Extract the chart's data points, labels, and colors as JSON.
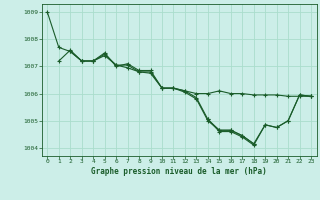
{
  "title": "Graphe pression niveau de la mer (hPa)",
  "bg_color": "#cceee8",
  "grid_color": "#aaddcc",
  "line_color": "#1a5c2a",
  "xlim": [
    -0.5,
    23.5
  ],
  "ylim": [
    1003.7,
    1009.3
  ],
  "yticks": [
    1004,
    1005,
    1006,
    1007,
    1008,
    1009
  ],
  "xticks": [
    0,
    1,
    2,
    3,
    4,
    5,
    6,
    7,
    8,
    9,
    10,
    11,
    12,
    13,
    14,
    15,
    16,
    17,
    18,
    19,
    20,
    21,
    22,
    23
  ],
  "series": [
    {
      "x": [
        0,
        1,
        2,
        3,
        4,
        5,
        6,
        7,
        8,
        9,
        10,
        11,
        12,
        13,
        14,
        15,
        16,
        17,
        18,
        19,
        20,
        21,
        22,
        23
      ],
      "y": [
        1009.0,
        1007.7,
        1007.55,
        1007.2,
        1007.2,
        1007.45,
        1007.05,
        1007.05,
        1006.8,
        1006.75,
        1006.2,
        1006.2,
        1006.1,
        1005.85,
        1005.05,
        1004.65,
        1004.65,
        1004.45,
        1004.15,
        1004.85,
        1004.75,
        1005.0,
        1005.95,
        1005.9
      ]
    },
    {
      "x": [
        1,
        2,
        3,
        4,
        5,
        6,
        7,
        8,
        9,
        10,
        11,
        12,
        13,
        14,
        15,
        16,
        17,
        18,
        19,
        20,
        21,
        22,
        23
      ],
      "y": [
        1007.2,
        1007.6,
        1007.2,
        1007.2,
        1007.5,
        1007.0,
        1007.1,
        1006.85,
        1006.85,
        1006.2,
        1006.2,
        1006.1,
        1006.0,
        1006.0,
        1006.1,
        1006.0,
        1006.0,
        1005.95,
        1005.95,
        1005.95,
        1005.9,
        1005.9,
        1005.9
      ]
    },
    {
      "x": [
        2,
        3,
        4,
        5,
        6,
        7,
        8,
        9,
        10,
        11,
        12,
        13,
        14,
        15,
        16,
        17,
        18
      ],
      "y": [
        1007.55,
        1007.2,
        1007.2,
        1007.4,
        1007.05,
        1006.95,
        1006.8,
        1006.8,
        1006.2,
        1006.2,
        1006.05,
        1005.8,
        1005.0,
        1004.65,
        1004.65,
        1004.45,
        1004.15
      ]
    },
    {
      "x": [
        14,
        15,
        16,
        17,
        18,
        19,
        20,
        21,
        22,
        23
      ],
      "y": [
        1005.05,
        1004.6,
        1004.6,
        1004.4,
        1004.1,
        1004.85,
        1004.75,
        1005.0,
        1005.95,
        1005.9
      ]
    }
  ]
}
